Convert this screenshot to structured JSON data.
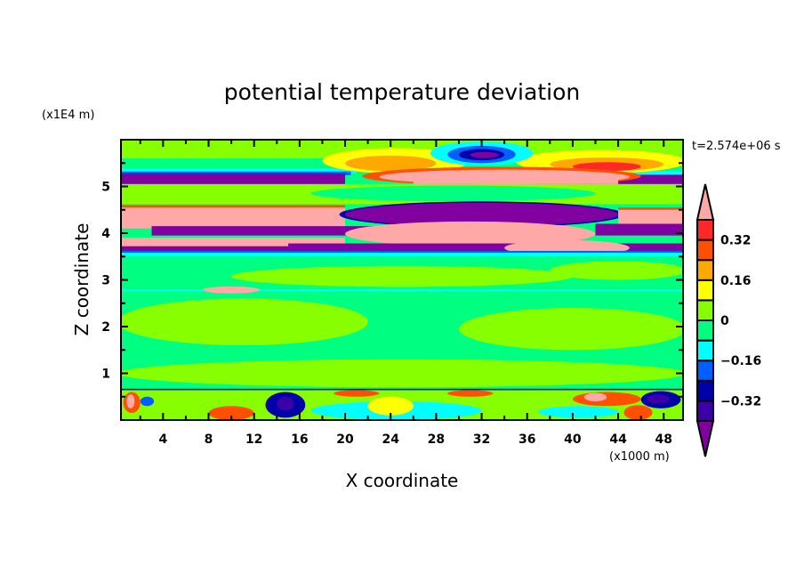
{
  "chart_data": {
    "type": "heatmap",
    "subtype": "filled-contour",
    "title": "potential temperature deviation",
    "xlabel": "X coordinate",
    "ylabel": "Z coordinate",
    "x_unit": "(x1000 m)",
    "y_unit": "(x1E4 m)",
    "time_label": "t=2.574e+06 s",
    "xlim": [
      0.3,
      49.7
    ],
    "ylim": [
      0,
      6
    ],
    "x_ticks": [
      "4",
      "8",
      "12",
      "16",
      "20",
      "24",
      "28",
      "32",
      "36",
      "40",
      "44",
      "48"
    ],
    "y_ticks": [
      "1",
      "2",
      "3",
      "4",
      "5"
    ],
    "colorbar": {
      "levels": [
        -0.4,
        -0.32,
        -0.24,
        -0.16,
        -0.08,
        0,
        0.08,
        0.16,
        0.24,
        0.32,
        0.4
      ],
      "labels": [
        "0.32",
        "0.16",
        "0",
        "-0.16",
        "-0.32"
      ],
      "extend": "both",
      "colors": [
        "#8000a0",
        "#3c00a8",
        "#0000a8",
        "#0060ff",
        "#00ffff",
        "#00ff80",
        "#88ff00",
        "#ffff00",
        "#ffa800",
        "#ff5000",
        "#ff2828",
        "#ffa8a8"
      ]
    },
    "regions": [
      {
        "level": 6,
        "shape": "rect",
        "x": [
          0,
          50
        ],
        "z": [
          5.6,
          6
        ]
      },
      {
        "level": 5,
        "shape": "rect",
        "x": [
          0,
          50
        ],
        "z": [
          5.3,
          5.6
        ]
      },
      {
        "level": 4,
        "shape": "rect",
        "x": [
          0,
          21
        ],
        "z": [
          5.28,
          5.38
        ]
      },
      {
        "level": 3,
        "shape": "rect",
        "x": [
          0,
          20.5
        ],
        "z": [
          5.24,
          5.32
        ]
      },
      {
        "level": 0,
        "shape": "rect",
        "x": [
          0,
          20
        ],
        "z": [
          5.05,
          5.28
        ]
      },
      {
        "level": 4,
        "shape": "rect",
        "x": [
          36,
          50
        ],
        "z": [
          5.22,
          5.33
        ]
      },
      {
        "level": 0,
        "shape": "rect",
        "x": [
          37,
          50
        ],
        "z": [
          5.05,
          5.25
        ]
      },
      {
        "level": 7,
        "shape": "ellipse",
        "x": [
          18,
          31
        ],
        "z": [
          5.28,
          5.82
        ]
      },
      {
        "level": 8,
        "shape": "ellipse",
        "x": [
          20,
          28
        ],
        "z": [
          5.33,
          5.66
        ]
      },
      {
        "level": 7,
        "shape": "ellipse",
        "x": [
          35,
          50
        ],
        "z": [
          5.28,
          5.78
        ]
      },
      {
        "level": 8,
        "shape": "ellipse",
        "x": [
          38,
          48
        ],
        "z": [
          5.33,
          5.62
        ]
      },
      {
        "level": 10,
        "shape": "ellipse",
        "x": [
          40,
          46
        ],
        "z": [
          5.33,
          5.52
        ]
      },
      {
        "level": 9,
        "shape": "ellipse",
        "x": [
          21.5,
          46
        ],
        "z": [
          5.02,
          5.42
        ]
      },
      {
        "level": 11,
        "shape": "ellipse",
        "x": [
          23,
          45
        ],
        "z": [
          5.05,
          5.36
        ]
      },
      {
        "level": 11,
        "shape": "rect",
        "x": [
          26,
          44
        ],
        "z": [
          5.05,
          5.2
        ]
      },
      {
        "level": 4,
        "shape": "ellipse",
        "x": [
          27.5,
          36.5
        ],
        "z": [
          5.45,
          5.97
        ]
      },
      {
        "level": 3,
        "shape": "ellipse",
        "x": [
          29,
          35
        ],
        "z": [
          5.5,
          5.87
        ]
      },
      {
        "level": 2,
        "shape": "ellipse",
        "x": [
          30,
          34
        ],
        "z": [
          5.56,
          5.8
        ]
      },
      {
        "level": 0,
        "shape": "ellipse",
        "x": [
          31,
          33.5
        ],
        "z": [
          5.61,
          5.74
        ]
      },
      {
        "level": 6,
        "shape": "rect",
        "x": [
          0,
          50
        ],
        "z": [
          4.62,
          5.05
        ]
      },
      {
        "level": 5,
        "shape": "ellipse",
        "x": [
          17,
          42
        ],
        "z": [
          4.68,
          5.02
        ]
      },
      {
        "level": 9,
        "shape": "rect",
        "x": [
          0,
          20
        ],
        "z": [
          4.5,
          4.6
        ]
      },
      {
        "level": 11,
        "shape": "rect",
        "x": [
          0,
          20
        ],
        "z": [
          4.1,
          4.55
        ]
      },
      {
        "level": 2,
        "shape": "ellipse",
        "x": [
          19.5,
          44.5
        ],
        "z": [
          4.12,
          4.68
        ]
      },
      {
        "level": 0,
        "shape": "ellipse",
        "x": [
          20,
          44
        ],
        "z": [
          4.15,
          4.65
        ]
      },
      {
        "level": 9,
        "shape": "rect",
        "x": [
          44,
          50
        ],
        "z": [
          4.15,
          4.55
        ]
      },
      {
        "level": 11,
        "shape": "rect",
        "x": [
          44,
          50
        ],
        "z": [
          4.2,
          4.5
        ]
      },
      {
        "level": 0,
        "shape": "rect",
        "x": [
          42,
          50
        ],
        "z": [
          3.95,
          4.2
        ]
      },
      {
        "level": 0,
        "shape": "rect",
        "x": [
          3,
          26
        ],
        "z": [
          3.95,
          4.15
        ]
      },
      {
        "level": 11,
        "shape": "ellipse",
        "x": [
          20,
          42
        ],
        "z": [
          3.72,
          4.25
        ]
      },
      {
        "level": 11,
        "shape": "rect",
        "x": [
          0,
          20
        ],
        "z": [
          3.7,
          3.9
        ]
      },
      {
        "level": 0,
        "shape": "rect",
        "x": [
          15,
          50
        ],
        "z": [
          3.6,
          3.78
        ]
      },
      {
        "level": 11,
        "shape": "ellipse",
        "x": [
          34,
          45
        ],
        "z": [
          3.52,
          3.85
        ]
      },
      {
        "level": 0,
        "shape": "rect",
        "x": [
          0,
          15
        ],
        "z": [
          3.62,
          3.72
        ]
      },
      {
        "level": 3,
        "shape": "rect",
        "x": [
          0,
          50
        ],
        "z": [
          3.58,
          3.62
        ]
      },
      {
        "level": 4,
        "shape": "rect",
        "x": [
          0,
          50
        ],
        "z": [
          3.5,
          3.58
        ]
      },
      {
        "level": 6,
        "shape": "ellipse",
        "x": [
          0,
          22
        ],
        "z": [
          1.6,
          2.6
        ]
      },
      {
        "level": 6,
        "shape": "ellipse",
        "x": [
          30,
          50
        ],
        "z": [
          1.5,
          2.4
        ]
      },
      {
        "level": 6,
        "shape": "ellipse",
        "x": [
          0,
          50
        ],
        "z": [
          0.7,
          1.3
        ]
      },
      {
        "level": 6,
        "shape": "ellipse",
        "x": [
          10,
          40
        ],
        "z": [
          2.85,
          3.3
        ]
      },
      {
        "level": 6,
        "shape": "ellipse",
        "x": [
          38,
          50
        ],
        "z": [
          3.0,
          3.4
        ]
      },
      {
        "level": 4,
        "shape": "rect",
        "x": [
          0,
          50
        ],
        "z": [
          2.76,
          2.8
        ]
      },
      {
        "level": 11,
        "shape": "ellipse",
        "x": [
          7.5,
          12.5
        ],
        "z": [
          2.71,
          2.86
        ]
      },
      {
        "level": 6,
        "shape": "rect",
        "x": [
          0,
          50
        ],
        "z": [
          0,
          0.65
        ]
      },
      {
        "level": 2,
        "shape": "rect",
        "x": [
          0,
          50
        ],
        "z": [
          0.64,
          0.67
        ]
      },
      {
        "level": 4,
        "shape": "ellipse",
        "x": [
          17,
          32
        ],
        "z": [
          0,
          0.4
        ]
      },
      {
        "level": 2,
        "shape": "ellipse",
        "x": [
          13,
          16.5
        ],
        "z": [
          0.05,
          0.6
        ]
      },
      {
        "level": 1,
        "shape": "ellipse",
        "x": [
          14,
          15.5
        ],
        "z": [
          0.2,
          0.5
        ]
      },
      {
        "level": 9,
        "shape": "ellipse",
        "x": [
          0.5,
          2
        ],
        "z": [
          0.15,
          0.6
        ]
      },
      {
        "level": 11,
        "shape": "ellipse",
        "x": [
          0.8,
          1.5
        ],
        "z": [
          0.25,
          0.55
        ]
      },
      {
        "level": 9,
        "shape": "ellipse",
        "x": [
          8,
          12
        ],
        "z": [
          0,
          0.3
        ]
      },
      {
        "level": 9,
        "shape": "ellipse",
        "x": [
          40,
          46
        ],
        "z": [
          0.3,
          0.6
        ]
      },
      {
        "level": 11,
        "shape": "ellipse",
        "x": [
          41,
          43
        ],
        "z": [
          0.4,
          0.58
        ]
      },
      {
        "level": 9,
        "shape": "ellipse",
        "x": [
          44.5,
          47
        ],
        "z": [
          0,
          0.32
        ]
      },
      {
        "level": 2,
        "shape": "ellipse",
        "x": [
          46,
          49.5
        ],
        "z": [
          0.25,
          0.62
        ]
      },
      {
        "level": 1,
        "shape": "ellipse",
        "x": [
          46.5,
          48.5
        ],
        "z": [
          0.35,
          0.55
        ]
      },
      {
        "level": 7,
        "shape": "ellipse",
        "x": [
          22,
          26
        ],
        "z": [
          0.1,
          0.5
        ]
      },
      {
        "level": 4,
        "shape": "ellipse",
        "x": [
          37,
          44
        ],
        "z": [
          0.05,
          0.3
        ]
      },
      {
        "level": 3,
        "shape": "ellipse",
        "x": [
          2,
          3.2
        ],
        "z": [
          0.3,
          0.5
        ]
      },
      {
        "level": 9,
        "shape": "ellipse",
        "x": [
          19,
          23
        ],
        "z": [
          0.5,
          0.64
        ]
      },
      {
        "level": 9,
        "shape": "ellipse",
        "x": [
          29,
          33
        ],
        "z": [
          0.5,
          0.64
        ]
      }
    ]
  }
}
